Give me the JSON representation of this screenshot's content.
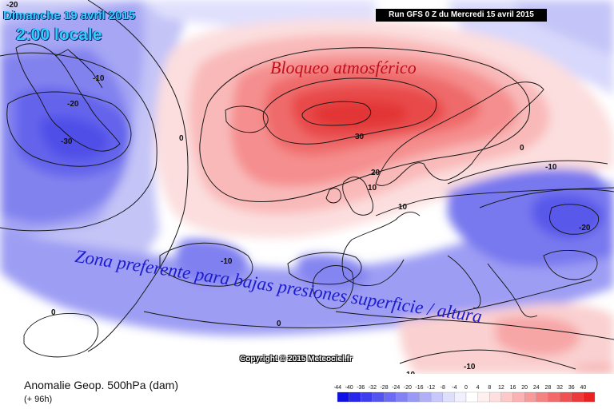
{
  "header": {
    "date": "Dimanche 19 avril 2015",
    "time": "2:00 locale",
    "run": "Run GFS 0 Z du Mercredi 15 avril 2015"
  },
  "annotations": {
    "blocking": "Bloqueo atmosférico",
    "low_pressure_zone": "Zona preferente para bajas presiones superficie / altura"
  },
  "copyright": "Copyright © 2015 Meteociel.fr",
  "footer": {
    "title": "Anomalie Geop. 500hPa (dam)",
    "lead": "(+ 96h)"
  },
  "contour_labels": [
    "-20",
    "-10",
    "-20",
    "-30",
    "0",
    "30",
    "20",
    "10",
    "10",
    "0",
    "-10",
    "-20",
    "-10",
    "0",
    "0",
    "10",
    "-10"
  ],
  "legend": {
    "values": [
      "-44",
      "-40",
      "-36",
      "-32",
      "-28",
      "-24",
      "-20",
      "-16",
      "-12",
      "-8",
      "-4",
      "0",
      "4",
      "8",
      "12",
      "16",
      "20",
      "24",
      "28",
      "32",
      "36",
      "40"
    ],
    "colors": [
      "#0f0fe8",
      "#2626ec",
      "#3d3def",
      "#5454f1",
      "#6b6bf3",
      "#8282f5",
      "#9999f7",
      "#b0b0f9",
      "#c7c7fb",
      "#dedefd",
      "#f0f0fe",
      "#ffffff",
      "#fff0f0",
      "#fedede",
      "#fcc8c8",
      "#fab2b2",
      "#f89a9a",
      "#f58282",
      "#f36a6a",
      "#f05252",
      "#ed3a3a",
      "#ea2222"
    ]
  }
}
